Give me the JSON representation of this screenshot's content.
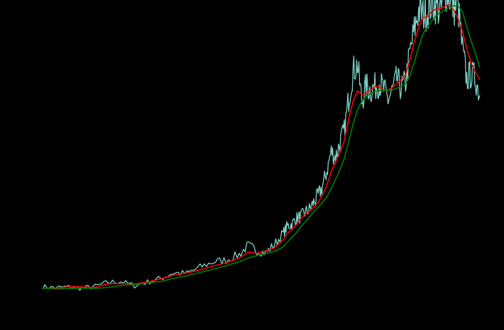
{
  "chart_data": {
    "type": "line",
    "title": "",
    "xlabel": "",
    "ylabel": "",
    "grid": false,
    "legend": "none",
    "xlim": [
      0,
      100
    ],
    "ylim": [
      0,
      100
    ],
    "series": [
      {
        "color": "#7fd1c7",
        "style": "noisy",
        "x": [
          0,
          3,
          6,
          9,
          12,
          15,
          18,
          21,
          24,
          27,
          30,
          33,
          36,
          39,
          42,
          45,
          47,
          49,
          51,
          53,
          55,
          56,
          57,
          58,
          59,
          60,
          61,
          62,
          63,
          64,
          65,
          66,
          67,
          68,
          69,
          70,
          71,
          72,
          73,
          74,
          75,
          76,
          77,
          78,
          79,
          80,
          81,
          82,
          83,
          84,
          85,
          86,
          87,
          88,
          89,
          90,
          91,
          92,
          93,
          94,
          95,
          96,
          97,
          98,
          99,
          100
        ],
        "y": [
          5.0,
          4.6,
          4.9,
          4.4,
          5.1,
          6.5,
          6.8,
          5.3,
          6.6,
          7.9,
          9.8,
          9.6,
          11.8,
          13.6,
          14.3,
          16.2,
          19.3,
          17.7,
          16.8,
          19.6,
          23.5,
          26.1,
          26.8,
          28.8,
          29.4,
          30.8,
          32.0,
          34.4,
          36.8,
          39.8,
          45.2,
          52.2,
          50.1,
          55.2,
          59.4,
          70.5,
          80.2,
          82.4,
          69.8,
          75.0,
          73.5,
          74.6,
          76.2,
          73.7,
          70.2,
          73.3,
          77.4,
          74.2,
          76.1,
          86.4,
          94.4,
          101.3,
          99.9,
          101.1,
          103.7,
          103.0,
          100.5,
          108.1,
          106.2,
          101.8,
          103.4,
          87.8,
          77.4,
          79.2,
          77.6,
          71.7
        ]
      },
      {
        "color": "#ff0000",
        "style": "smooth",
        "x": [
          0,
          3,
          6,
          9,
          12,
          15,
          18,
          21,
          24,
          27,
          30,
          33,
          36,
          39,
          42,
          45,
          47,
          49,
          51,
          53,
          55,
          56,
          57,
          58,
          59,
          60,
          61,
          62,
          63,
          64,
          65,
          66,
          67,
          68,
          69,
          70,
          71,
          72,
          73,
          74,
          75,
          76,
          77,
          78,
          79,
          80,
          81,
          82,
          83,
          84,
          85,
          86,
          87,
          88,
          89,
          90,
          91,
          92,
          93,
          94,
          95,
          96,
          97,
          98,
          99,
          100
        ],
        "y": [
          4.5,
          4.4,
          5.0,
          4.9,
          4.7,
          6.0,
          6.1,
          5.9,
          6.6,
          7.7,
          9.0,
          9.8,
          10.8,
          12.2,
          13.3,
          15.0,
          17.0,
          16.6,
          17.4,
          18.5,
          21.3,
          23.6,
          25.0,
          26.5,
          28.6,
          30.2,
          31.2,
          32.6,
          34.4,
          37.0,
          40.3,
          45.1,
          48.4,
          51.8,
          55.9,
          63.5,
          69.6,
          73.3,
          72.0,
          72.4,
          73.4,
          74.9,
          74.6,
          73.5,
          73.6,
          74.4,
          75.8,
          77.2,
          78.8,
          84.0,
          90.2,
          95.5,
          98.8,
          99.1,
          100.9,
          101.8,
          101.9,
          102.8,
          103.3,
          101.4,
          98.5,
          94.0,
          88.1,
          82.9,
          79.7,
          77.1
        ]
      },
      {
        "color": "#008000",
        "style": "smooth",
        "x": [
          0,
          3,
          6,
          9,
          12,
          15,
          18,
          21,
          24,
          27,
          30,
          33,
          36,
          39,
          42,
          45,
          47,
          49,
          51,
          53,
          55,
          56,
          57,
          58,
          59,
          60,
          61,
          62,
          63,
          64,
          65,
          66,
          67,
          68,
          69,
          70,
          71,
          72,
          73,
          74,
          75,
          76,
          77,
          78,
          79,
          80,
          81,
          82,
          83,
          84,
          85,
          86,
          87,
          88,
          89,
          90,
          91,
          92,
          93,
          94,
          95,
          96,
          97,
          98,
          99,
          100
        ],
        "y": [
          4.5,
          4.2,
          4.3,
          4.5,
          4.4,
          4.7,
          5.4,
          5.7,
          6.3,
          6.8,
          7.9,
          8.8,
          9.9,
          11.0,
          12.3,
          13.7,
          15.0,
          15.8,
          16.5,
          17.3,
          18.8,
          20.5,
          22.1,
          23.8,
          25.7,
          27.5,
          29.2,
          31.0,
          32.7,
          34.3,
          36.3,
          39.3,
          42.4,
          45.8,
          49.7,
          55.6,
          61.6,
          66.6,
          69.6,
          71.2,
          72.4,
          73.1,
          73.3,
          73.3,
          73.4,
          73.6,
          74.2,
          74.9,
          75.7,
          78.5,
          83.1,
          88.5,
          93.1,
          95.6,
          97.6,
          99.5,
          100.5,
          101.5,
          102.4,
          102.9,
          102.9,
          100.9,
          95.7,
          90.7,
          86.3,
          81.3
        ]
      }
    ]
  }
}
